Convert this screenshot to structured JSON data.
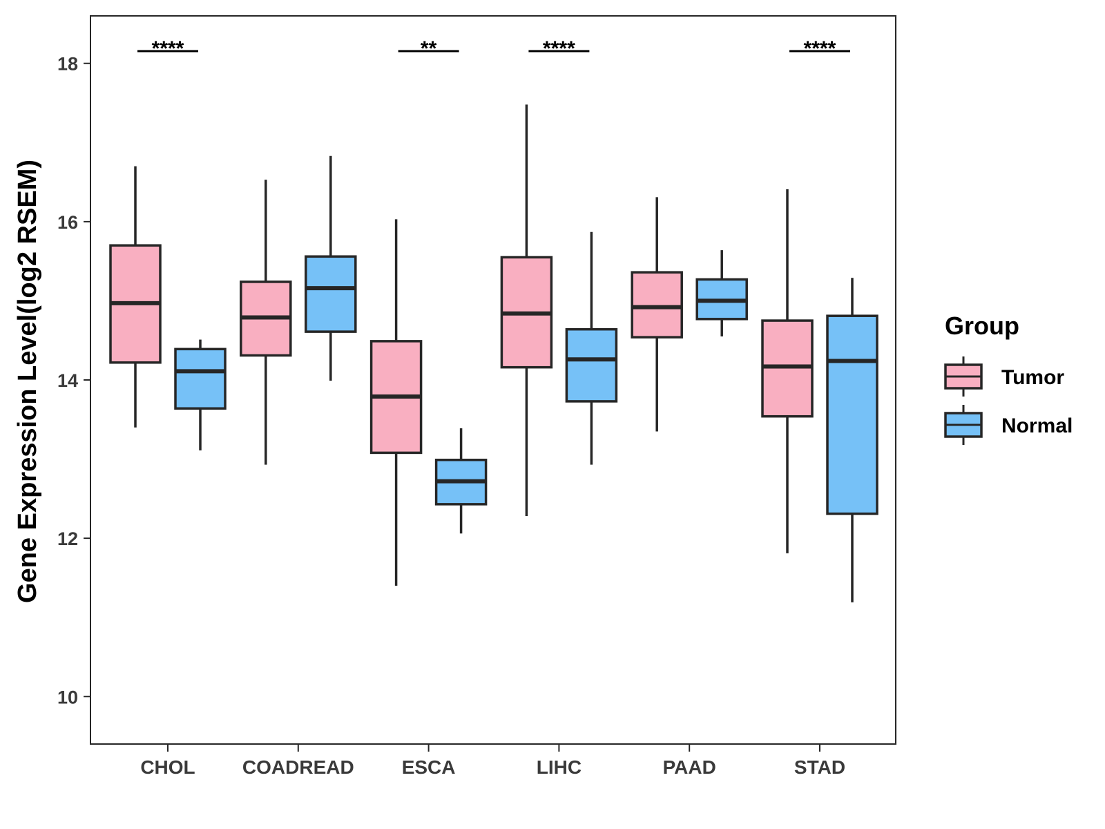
{
  "chart_data": {
    "type": "boxplot",
    "title": "",
    "xlabel": "",
    "ylabel": "Gene Expression Level(log2 RSEM)",
    "ylim": [
      9.4,
      18.6
    ],
    "yticks": [
      10,
      12,
      14,
      16,
      18
    ],
    "categories": [
      "CHOL",
      "COADREAD",
      "ESCA",
      "LIHC",
      "PAAD",
      "STAD"
    ],
    "legend": {
      "title": "Group",
      "position": "right",
      "entries": [
        "Tumor",
        "Normal"
      ]
    },
    "colors": {
      "Tumor": "#F9AFC1",
      "Normal": "#76C1F7",
      "stroke": "#262626"
    },
    "series": [
      {
        "name": "Tumor",
        "boxes": [
          {
            "category": "CHOL",
            "min": 13.4,
            "q1": 14.22,
            "median": 14.97,
            "q3": 15.7,
            "max": 16.7
          },
          {
            "category": "COADREAD",
            "min": 12.93,
            "q1": 14.31,
            "median": 14.79,
            "q3": 15.24,
            "max": 16.53
          },
          {
            "category": "ESCA",
            "min": 11.4,
            "q1": 13.08,
            "median": 13.79,
            "q3": 14.49,
            "max": 16.03
          },
          {
            "category": "LIHC",
            "min": 12.28,
            "q1": 14.16,
            "median": 14.84,
            "q3": 15.55,
            "max": 17.48
          },
          {
            "category": "PAAD",
            "min": 13.35,
            "q1": 14.54,
            "median": 14.92,
            "q3": 15.36,
            "max": 16.31
          },
          {
            "category": "STAD",
            "min": 11.81,
            "q1": 13.54,
            "median": 14.17,
            "q3": 14.75,
            "max": 16.41
          }
        ]
      },
      {
        "name": "Normal",
        "boxes": [
          {
            "category": "CHOL",
            "min": 13.11,
            "q1": 13.64,
            "median": 14.11,
            "q3": 14.39,
            "max": 14.51
          },
          {
            "category": "COADREAD",
            "min": 13.99,
            "q1": 14.61,
            "median": 15.16,
            "q3": 15.56,
            "max": 16.83
          },
          {
            "category": "ESCA",
            "min": 12.06,
            "q1": 12.43,
            "median": 12.72,
            "q3": 12.99,
            "max": 13.39
          },
          {
            "category": "LIHC",
            "min": 12.93,
            "q1": 13.73,
            "median": 14.26,
            "q3": 14.64,
            "max": 15.87
          },
          {
            "category": "PAAD",
            "min": 14.55,
            "q1": 14.77,
            "median": 15.0,
            "q3": 15.27,
            "max": 15.64
          },
          {
            "category": "STAD",
            "min": 11.19,
            "q1": 12.31,
            "median": 14.24,
            "q3": 14.81,
            "max": 15.29
          }
        ]
      }
    ],
    "annotations": [
      {
        "category": "CHOL",
        "label": "****"
      },
      {
        "category": "ESCA",
        "label": "**"
      },
      {
        "category": "LIHC",
        "label": "****"
      },
      {
        "category": "STAD",
        "label": "****"
      }
    ]
  }
}
